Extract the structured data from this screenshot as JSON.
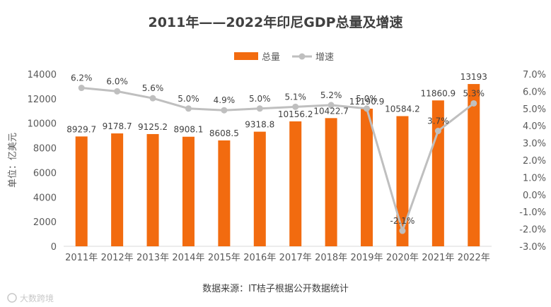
{
  "chart_data": {
    "type": "bar",
    "title": "2011年——2022年印尼GDP总量及增速",
    "ylabel": "单位：亿美元",
    "source": "数据来源：IT桔子根据公开数据统计",
    "watermark": "大数跨境",
    "ylim": [
      0,
      14000
    ],
    "y_ticks": [
      "0",
      "2000",
      "4000",
      "6000",
      "8000",
      "10000",
      "12000",
      "14000"
    ],
    "y2lim": [
      -3.0,
      7.0
    ],
    "y2_ticks": [
      "-3.0%",
      "-2.0%",
      "-1.0%",
      "0.0%",
      "1.0%",
      "2.0%",
      "3.0%",
      "4.0%",
      "5.0%",
      "6.0%",
      "7.0%"
    ],
    "categories": [
      "2011年",
      "2012年",
      "2013年",
      "2014年",
      "2015年",
      "2016年",
      "2017年",
      "2018年",
      "2019年",
      "2020年",
      "2021年",
      "2022年"
    ],
    "series": [
      {
        "name": "总量",
        "type": "bar",
        "axis": "left",
        "color": "#f26b0f",
        "values": [
          8929.7,
          9178.7,
          9125.2,
          8908.1,
          8608.5,
          9318.8,
          10156.2,
          10422.7,
          11190.9,
          10584.2,
          11860.9,
          13193
        ],
        "labels": [
          "8929.7",
          "9178.7",
          "9125.2",
          "8908.1",
          "8608.5",
          "9318.8",
          "10156.2",
          "10422.7",
          "11190.9",
          "10584.2",
          "11860.9",
          "13193"
        ]
      },
      {
        "name": "增速",
        "type": "line",
        "axis": "right",
        "color": "#bfbfbf",
        "values": [
          6.2,
          6.0,
          5.6,
          5.0,
          4.9,
          5.0,
          5.1,
          5.2,
          5.0,
          -2.1,
          3.7,
          5.3
        ],
        "labels": [
          "6.2%",
          "6.0%",
          "5.6%",
          "5.0%",
          "4.9%",
          "5.0%",
          "5.1%",
          "5.2%",
          "5.0%",
          "-2.1%",
          "3.7%",
          "5.3%"
        ]
      }
    ],
    "legend_position": "top-center"
  }
}
